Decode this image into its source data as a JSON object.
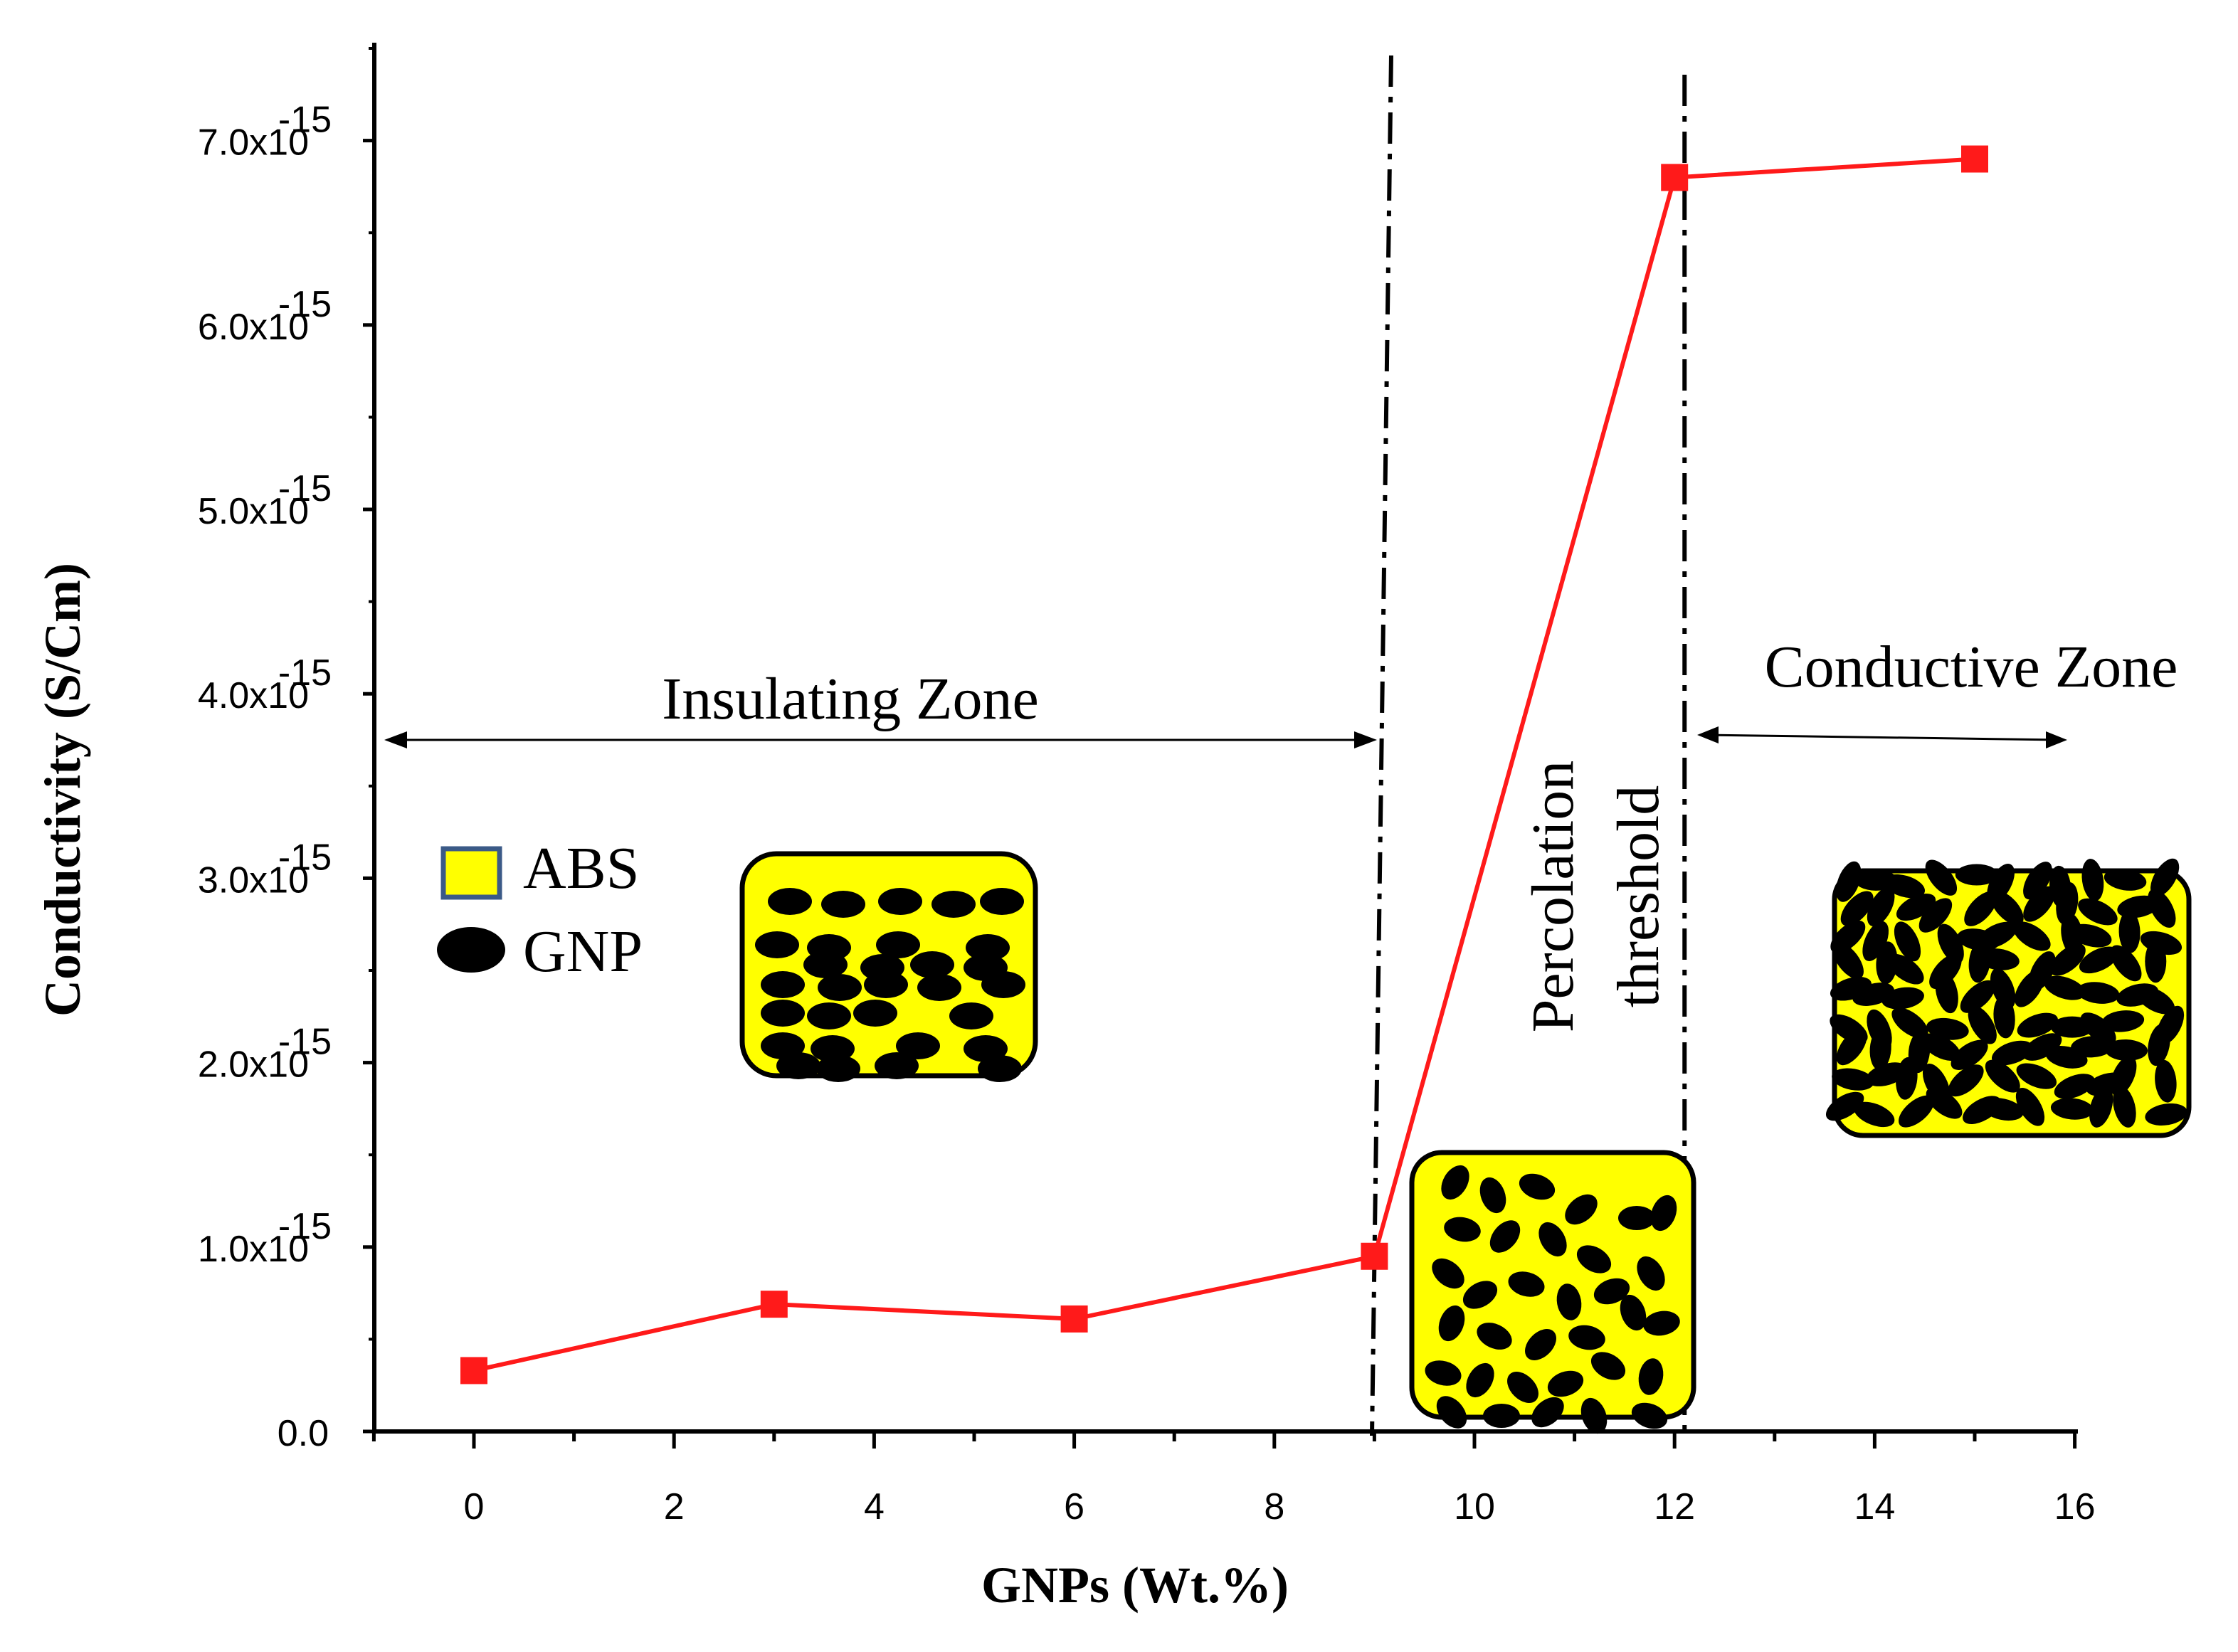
{
  "chart_data": {
    "type": "line",
    "xlabel": "GNPs (Wt.%)",
    "ylabel": "Conductivity (S/Cm)",
    "xlim": [
      -1,
      16
    ],
    "ylim": [
      0,
      7.5
    ],
    "y_unit_exponent": "-15",
    "x_ticks": [
      "0",
      "2",
      "4",
      "6",
      "8",
      "10",
      "12",
      "14",
      "16"
    ],
    "y_ticks": [
      {
        "value": 0,
        "mantissa": "0.0",
        "exp": ""
      },
      {
        "value": 1,
        "mantissa": "1.0x10",
        "exp": "-15"
      },
      {
        "value": 2,
        "mantissa": "2.0x10",
        "exp": "-15"
      },
      {
        "value": 3,
        "mantissa": "3.0x10",
        "exp": "-15"
      },
      {
        "value": 4,
        "mantissa": "4.0x10",
        "exp": "-15"
      },
      {
        "value": 5,
        "mantissa": "5.0x10",
        "exp": "-15"
      },
      {
        "value": 6,
        "mantissa": "6.0x10",
        "exp": "-15"
      },
      {
        "value": 7,
        "mantissa": "7.0x10",
        "exp": "-15"
      }
    ],
    "series": [
      {
        "name": "Conductivity",
        "color": "#ff1a1a",
        "x": [
          0,
          3,
          6,
          9,
          12,
          15
        ],
        "values": [
          0.33,
          0.69,
          0.61,
          0.95,
          6.8,
          6.9
        ]
      }
    ],
    "threshold_lines": [
      9,
      12.1
    ],
    "annotations": {
      "insulating_zone": "Insulating Zone",
      "conductive_zone": "Conductive Zone",
      "percolation_line1": "Percolation",
      "percolation_line2": "threshold"
    },
    "legend": [
      {
        "label": "ABS",
        "symbol": "yellow-square"
      },
      {
        "label": "GNP",
        "symbol": "black-ellipse"
      }
    ],
    "colors": {
      "matrix": "#ffff00",
      "particle": "#000000",
      "legend_border": "#3b5a87"
    }
  }
}
